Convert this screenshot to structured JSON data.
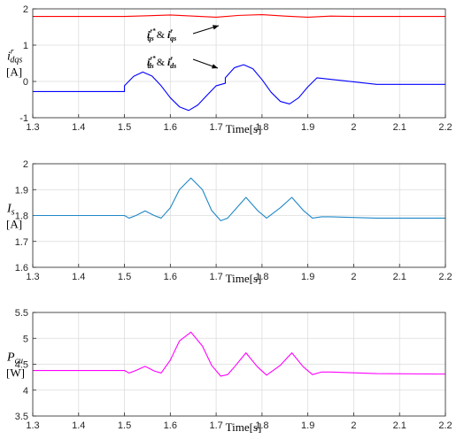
{
  "chart_data": [
    {
      "type": "line",
      "xlabel": "Time[s]",
      "ylabel_main": "i",
      "ylabel_sub": "dqs",
      "ylabel_sup": "r",
      "ylabel_unit": "[A]",
      "xlim": [
        1.3,
        2.2
      ],
      "ylim": [
        -1,
        2
      ],
      "xticks": [
        "1.3",
        "1.4",
        "1.5",
        "1.6",
        "1.7",
        "1.8",
        "1.9",
        "2",
        "2.1",
        "2.2"
      ],
      "yticks": [
        "-1",
        "0",
        "1",
        "2"
      ],
      "grid": true,
      "annotations": [
        {
          "text_a": "i",
          "sub_a": "qs",
          "sup_a": "r*",
          "amp": " & ",
          "text_b": "i",
          "sub_b": "qs",
          "sup_b": "r"
        },
        {
          "text_a": "i",
          "sub_a": "ds",
          "sup_a": "r*",
          "amp": " & ",
          "text_b": "i",
          "sub_b": "ds",
          "sup_b": "r"
        }
      ],
      "series": [
        {
          "color": "#ff0000",
          "x": [
            1.3,
            1.5,
            1.55,
            1.6,
            1.65,
            1.7,
            1.75,
            1.8,
            1.85,
            1.9,
            1.95,
            2.0,
            2.05,
            2.1,
            2.2
          ],
          "y": [
            1.79,
            1.79,
            1.81,
            1.83,
            1.8,
            1.77,
            1.82,
            1.84,
            1.8,
            1.77,
            1.8,
            1.79,
            1.79,
            1.79,
            1.79
          ]
        },
        {
          "color": "#0000ff",
          "x": [
            1.3,
            1.5,
            1.5,
            1.52,
            1.54,
            1.56,
            1.58,
            1.6,
            1.62,
            1.64,
            1.66,
            1.68,
            1.7,
            1.72,
            1.72,
            1.74,
            1.76,
            1.78,
            1.8,
            1.82,
            1.84,
            1.86,
            1.88,
            1.9,
            1.92,
            2.05,
            2.2
          ],
          "y": [
            -0.28,
            -0.28,
            -0.12,
            0.14,
            0.26,
            0.15,
            -0.12,
            -0.45,
            -0.7,
            -0.8,
            -0.65,
            -0.38,
            -0.12,
            -0.05,
            0.1,
            0.38,
            0.46,
            0.35,
            0.05,
            -0.3,
            -0.55,
            -0.62,
            -0.45,
            -0.15,
            0.1,
            -0.08,
            -0.08
          ]
        }
      ]
    },
    {
      "type": "line",
      "xlabel": "Time[s]",
      "ylabel_main": "I",
      "ylabel_sub": "s",
      "ylabel_unit": "[A]",
      "xlim": [
        1.3,
        2.2
      ],
      "ylim": [
        1.6,
        2.0
      ],
      "xticks": [
        "1.3",
        "1.4",
        "1.5",
        "1.6",
        "1.7",
        "1.8",
        "1.9",
        "2",
        "2.1",
        "2.2"
      ],
      "yticks": [
        "1.6",
        "1.7",
        "1.8",
        "1.9",
        "2"
      ],
      "grid": true,
      "series": [
        {
          "color": "#1f88c8",
          "x": [
            1.3,
            1.5,
            1.51,
            1.525,
            1.545,
            1.565,
            1.58,
            1.6,
            1.62,
            1.645,
            1.67,
            1.69,
            1.71,
            1.725,
            1.74,
            1.765,
            1.79,
            1.81,
            1.84,
            1.865,
            1.89,
            1.91,
            1.93,
            1.95,
            2.05,
            2.2
          ],
          "y": [
            1.8,
            1.8,
            1.79,
            1.8,
            1.818,
            1.8,
            1.79,
            1.83,
            1.9,
            1.945,
            1.9,
            1.82,
            1.78,
            1.79,
            1.82,
            1.87,
            1.82,
            1.79,
            1.83,
            1.87,
            1.82,
            1.79,
            1.795,
            1.795,
            1.79,
            1.79
          ]
        }
      ]
    },
    {
      "type": "line",
      "xlabel": "Time[s]",
      "ylabel_main": "P",
      "ylabel_sub": "cu",
      "ylabel_unit": "[W]",
      "xlim": [
        1.3,
        2.2
      ],
      "ylim": [
        3.5,
        5.5
      ],
      "xticks": [
        "1.3",
        "1.4",
        "1.5",
        "1.6",
        "1.7",
        "1.8",
        "1.9",
        "2",
        "2.1",
        "2.2"
      ],
      "yticks": [
        "3.5",
        "4",
        "4.5",
        "5",
        "5.5"
      ],
      "grid": true,
      "series": [
        {
          "color": "#ff00ff",
          "x": [
            1.3,
            1.5,
            1.51,
            1.525,
            1.545,
            1.565,
            1.58,
            1.6,
            1.62,
            1.645,
            1.67,
            1.69,
            1.71,
            1.725,
            1.74,
            1.765,
            1.79,
            1.81,
            1.84,
            1.865,
            1.89,
            1.91,
            1.93,
            1.95,
            2.05,
            2.2
          ],
          "y": [
            4.38,
            4.38,
            4.33,
            4.38,
            4.46,
            4.37,
            4.33,
            4.58,
            4.95,
            5.12,
            4.85,
            4.48,
            4.27,
            4.3,
            4.45,
            4.72,
            4.45,
            4.29,
            4.48,
            4.72,
            4.45,
            4.3,
            4.35,
            4.35,
            4.32,
            4.31
          ]
        }
      ]
    }
  ]
}
